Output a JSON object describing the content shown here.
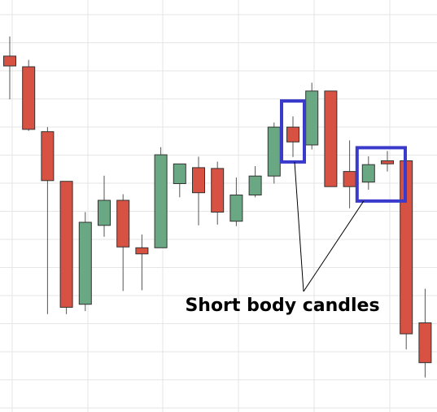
{
  "chart_data": {
    "type": "candlestick",
    "title": "",
    "xlabel": "",
    "ylabel": "",
    "ylim": [
      0,
      100
    ],
    "grid": true,
    "up_color": "#6aa884",
    "down_color": "#d75242",
    "candles": [
      {
        "open": 89.5,
        "high": 94.7,
        "low": 78.1,
        "close": 86.9
      },
      {
        "open": 86.7,
        "high": 88.5,
        "low": 69.8,
        "close": 70.2
      },
      {
        "open": 69.6,
        "high": 70.8,
        "low": 21.5,
        "close": 56.7
      },
      {
        "open": 56.5,
        "high": 56.5,
        "low": 21.5,
        "close": 23.3
      },
      {
        "open": 24.1,
        "high": 48.4,
        "low": 22.3,
        "close": 45.7
      },
      {
        "open": 44.9,
        "high": 58.0,
        "low": 41.9,
        "close": 51.5
      },
      {
        "open": 51.5,
        "high": 53.1,
        "low": 27.6,
        "close": 39.2
      },
      {
        "open": 39.0,
        "high": 42.5,
        "low": 27.8,
        "close": 37.4
      },
      {
        "open": 39.0,
        "high": 65.5,
        "low": 39.0,
        "close": 63.5
      },
      {
        "open": 55.9,
        "high": 61.1,
        "low": 52.3,
        "close": 61.1
      },
      {
        "open": 60.1,
        "high": 63.0,
        "low": 44.9,
        "close": 53.5
      },
      {
        "open": 59.9,
        "high": 61.7,
        "low": 45.1,
        "close": 48.4
      },
      {
        "open": 46.0,
        "high": 57.5,
        "low": 44.7,
        "close": 52.9
      },
      {
        "open": 52.9,
        "high": 60.5,
        "low": 52.3,
        "close": 57.9
      },
      {
        "open": 57.9,
        "high": 72.0,
        "low": 55.9,
        "close": 70.8
      },
      {
        "open": 70.8,
        "high": 73.6,
        "low": 62.9,
        "close": 66.9
      },
      {
        "open": 66.1,
        "high": 82.5,
        "low": 64.9,
        "close": 80.3
      },
      {
        "open": 80.3,
        "high": 80.3,
        "low": 55.1,
        "close": 55.1
      },
      {
        "open": 59.1,
        "high": 67.3,
        "low": 49.4,
        "close": 55.1
      },
      {
        "open": 56.3,
        "high": 63.1,
        "low": 54.3,
        "close": 60.9
      },
      {
        "open": 61.9,
        "high": 64.5,
        "low": 59.1,
        "close": 61.1
      },
      {
        "open": 61.9,
        "high": 63.1,
        "low": 12.2,
        "close": 16.3
      },
      {
        "open": 19.2,
        "high": 28.2,
        "low": 4.8,
        "close": 8.7
      }
    ],
    "highlighted_candles": [
      15,
      19,
      20
    ],
    "annotation": "Short body candles"
  }
}
